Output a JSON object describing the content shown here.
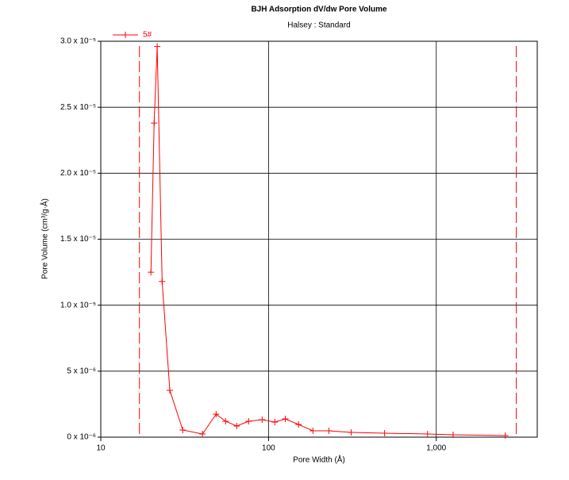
{
  "chart_data": {
    "type": "line",
    "title": "BJH Adsorption dV/dw Pore Volume",
    "subtitle": "Halsey : Standard",
    "x_label": "Pore Width (Å)",
    "y_label": "Pore Volume (cm³/g·Å)",
    "log_x": true,
    "grid": true,
    "legend": "top-left",
    "x": [
      19.9,
      20.8,
      21.7,
      23.2,
      25.8,
      30.8,
      40.4,
      48.7,
      55.5,
      64.6,
      76.1,
      91.6,
      109,
      126,
      151,
      184,
      229,
      311,
      492,
      887,
      1260,
      2580
    ],
    "series": [
      {
        "name": "5#",
        "color": "#ff0000",
        "values": [
          1.25e-05,
          2.38e-05,
          2.96e-05,
          1.18e-05,
          3.55e-06,
          5.4e-07,
          2.4e-07,
          1.74e-06,
          1.2e-06,
          8.4e-07,
          1.2e-06,
          1.32e-06,
          1.14e-06,
          1.38e-06,
          9.6e-07,
          4.8e-07,
          4.8e-07,
          3.6e-07,
          3e-07,
          2.4e-07,
          1.8e-07,
          1.2e-07
        ]
      }
    ],
    "vlines": [
      17,
      3000
    ],
    "xlim": [
      10,
      4000
    ],
    "xticks": [
      10,
      100,
      {
        "value": 1000,
        "label": "1,000"
      }
    ],
    "ylim": [
      0,
      3e-05
    ],
    "yticks": [
      {
        "value": 0,
        "label": "0 x 10⁻⁶"
      },
      {
        "value": 5e-06,
        "label": "5 x 10⁻⁶"
      },
      {
        "value": 1e-05,
        "label": "1.0 x 10⁻⁵"
      },
      {
        "value": 1.5e-05,
        "label": "1.5 x 10⁻⁵"
      },
      {
        "value": 2e-05,
        "label": "2.0 x 10⁻⁵"
      },
      {
        "value": 2.5e-05,
        "label": "2.5 x 10⁻⁵"
      },
      {
        "value": 3e-05,
        "label": "3.0 x 10⁻⁵"
      }
    ]
  }
}
